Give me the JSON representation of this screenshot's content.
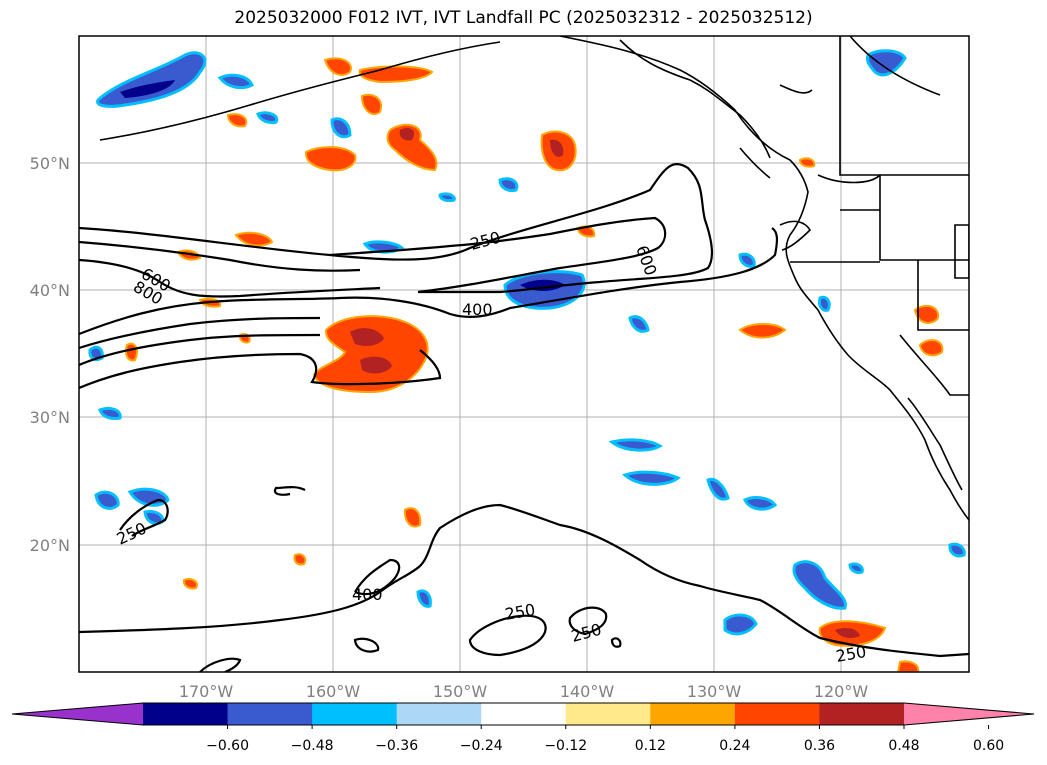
{
  "title": "2025032000 F012 IVT, IVT Landfall PC (2025032312 - 2025032512)",
  "map": {
    "lon_range": [
      "180°",
      "110°W"
    ],
    "lat_range": [
      "10°N",
      "60°N"
    ],
    "grid": true,
    "lon_ticks": [
      "170°W",
      "160°W",
      "150°W",
      "140°W",
      "130°W",
      "120°W"
    ],
    "lat_ticks": [
      "50°N",
      "40°N",
      "30°N",
      "20°N"
    ],
    "contour_labels": [
      "600",
      "800",
      "250",
      "600",
      "400",
      "250",
      "400",
      "250",
      "250",
      "250"
    ]
  },
  "colorbar": {
    "orientation": "horizontal",
    "extend": "both",
    "tick_labels": [
      "−0.60",
      "−0.48",
      "−0.36",
      "−0.24",
      "−0.12",
      "0.12",
      "0.24",
      "0.36",
      "0.48",
      "0.60"
    ],
    "colors": [
      "#9932cc",
      "#00008b",
      "#3a5bd0",
      "#00bfff",
      "#add8f5",
      "#ffffff",
      "#ffe98a",
      "#ffa500",
      "#ff4500",
      "#b22222",
      "#ff82ab"
    ]
  }
}
